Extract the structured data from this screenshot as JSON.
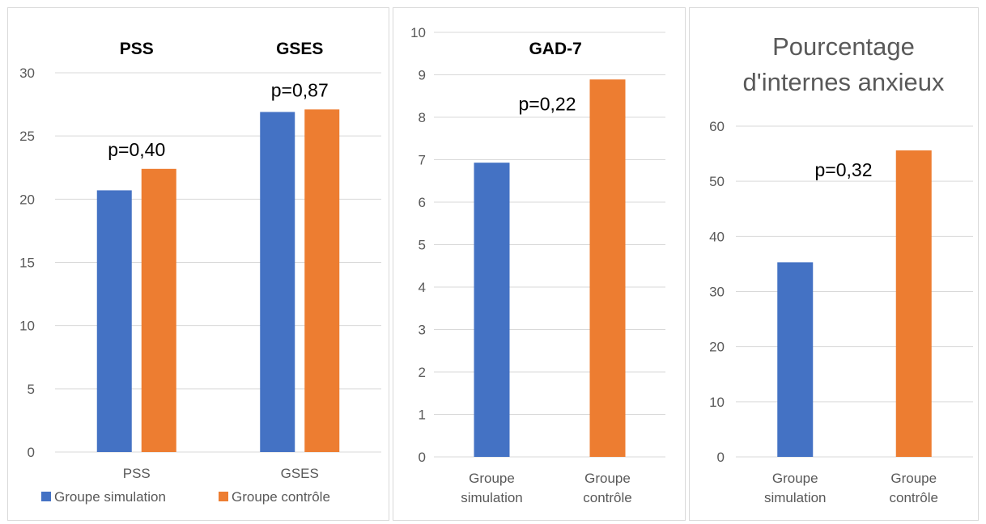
{
  "colors": {
    "simulation": "#4472C4",
    "controle": "#ED7D31",
    "grid": "#d9d9d9",
    "axis_text": "#595959"
  },
  "legend_labels": [
    "Groupe simulation",
    "Groupe contrôle"
  ],
  "chart_data": [
    {
      "type": "bar",
      "categories": [
        "PSS",
        "GSES"
      ],
      "group_titles": [
        "PSS",
        "GSES"
      ],
      "series": [
        {
          "name": "Groupe simulation",
          "values": [
            20.7,
            26.9
          ]
        },
        {
          "name": "Groupe contrôle",
          "values": [
            22.4,
            27.1
          ]
        }
      ],
      "annotations": [
        "p=0,40",
        "p=0,87"
      ],
      "ylim": [
        0,
        30
      ],
      "yticks": [
        0,
        5,
        10,
        15,
        20,
        25,
        30
      ],
      "grid": true,
      "legend": "bottom"
    },
    {
      "type": "bar",
      "title": "GAD-7",
      "categories": [
        "Groupe simulation",
        "Groupe contrôle"
      ],
      "values": [
        6.93,
        8.89
      ],
      "annotation": "p=0,22",
      "ylim": [
        0,
        10
      ],
      "yticks": [
        0,
        1,
        2,
        3,
        4,
        5,
        6,
        7,
        8,
        9,
        10
      ],
      "grid": true
    },
    {
      "type": "bar",
      "title": [
        "Pourcentage",
        "d'internes anxieux"
      ],
      "categories": [
        "Groupe simulation",
        "Groupe contrôle"
      ],
      "values": [
        35.3,
        55.6
      ],
      "annotation": "p=0,32",
      "ylim": [
        0,
        60
      ],
      "yticks": [
        0,
        10,
        20,
        30,
        40,
        50,
        60
      ],
      "grid": true
    }
  ]
}
